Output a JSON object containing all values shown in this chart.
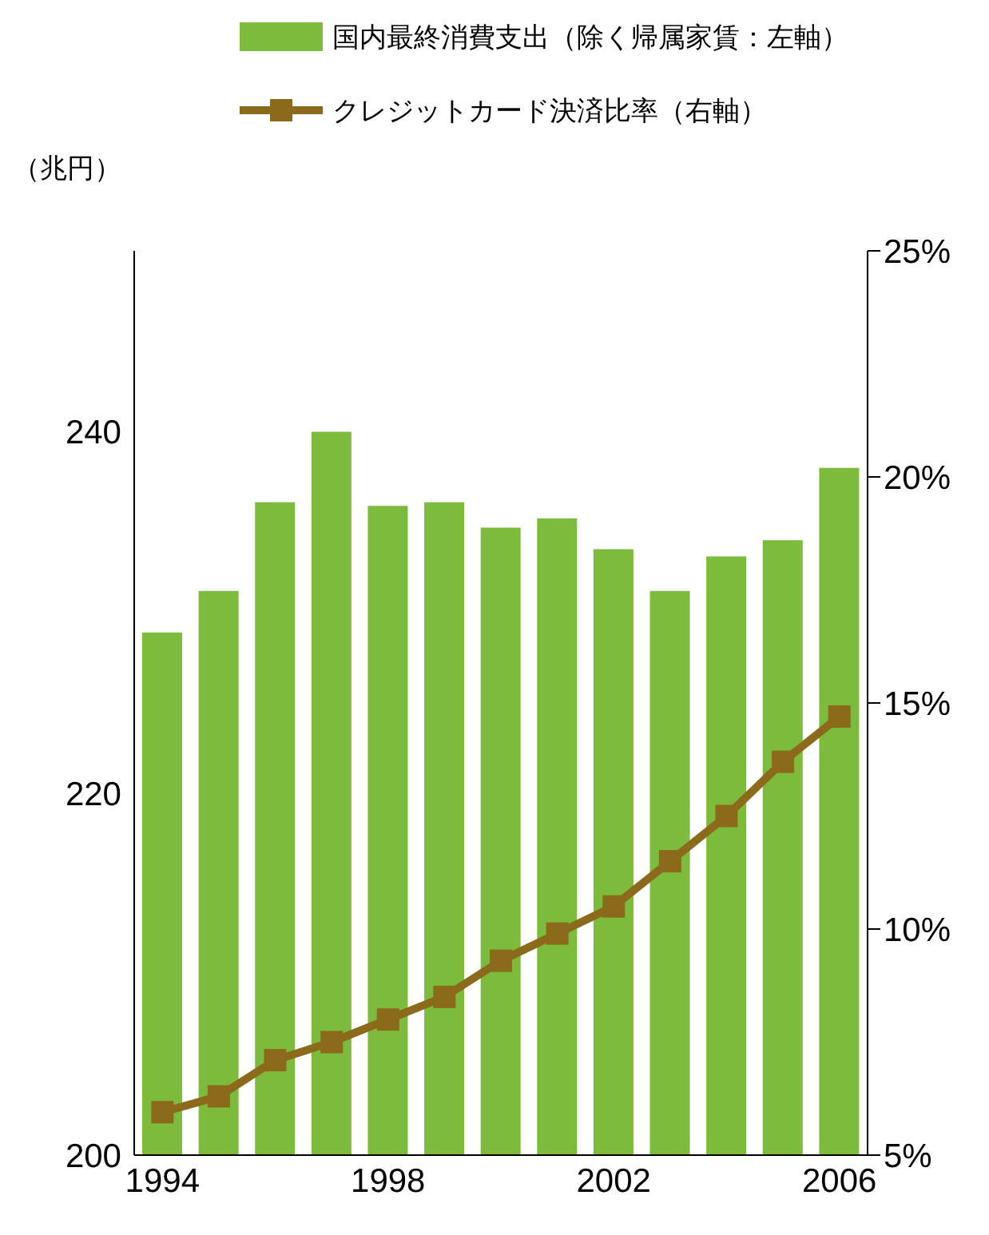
{
  "chart_data": {
    "type": "bar",
    "ylabel": "（兆円）",
    "categories": [
      "1994",
      null,
      null,
      null,
      "1998",
      null,
      null,
      null,
      "2002",
      null,
      null,
      null,
      "2006"
    ],
    "series": [
      {
        "name": "国内最終消費支出（除く帰属家賃：左軸）",
        "color": "#7dbb3c",
        "values": [
          228.9,
          231.2,
          236.1,
          240.0,
          235.9,
          236.1,
          234.7,
          235.2,
          233.5,
          231.2,
          233.1,
          234.0,
          238.0
        ]
      },
      {
        "name": "クレジットカード決済比率（右軸）",
        "type": "line",
        "axis": "y2",
        "color": "#8c6a1c",
        "values": [
          5.95,
          6.3,
          7.1,
          7.5,
          8.0,
          8.5,
          9.3,
          9.9,
          10.5,
          11.5,
          12.5,
          13.7,
          14.7
        ]
      }
    ],
    "ylim": [
      200,
      250
    ],
    "yticks": [
      200,
      220,
      240
    ],
    "y2lim": [
      5,
      25
    ],
    "y2ticks": [
      {
        "value": 5,
        "label": "5%"
      },
      {
        "value": 10,
        "label": "10%"
      },
      {
        "value": 15,
        "label": "15%"
      },
      {
        "value": 20,
        "label": "20%"
      },
      {
        "value": 25,
        "label": "25%"
      }
    ],
    "legend": "top",
    "marker": "square",
    "line_style": "solid"
  }
}
